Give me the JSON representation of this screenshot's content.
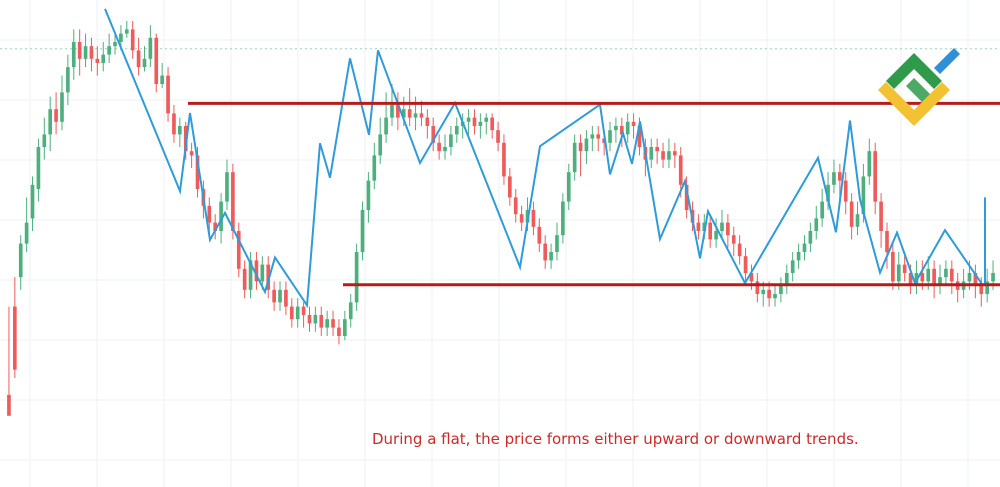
{
  "caption": "During a flat, the price forms either upward or downward trends.",
  "colors": {
    "up_candle": "#4caf7d",
    "down_candle": "#ef5a5a",
    "zigzag": "#2f9bd8",
    "range_lines": "#b71c1c",
    "grid": "#eef0f3",
    "dotted_level": "#9ad3bd",
    "caption": "#cc2a2a",
    "logo_green": "#2e9a4a",
    "logo_yellow": "#f2c232",
    "logo_blue": "#2f8fd8"
  },
  "logo": {
    "icon": "brand-logo-icon"
  },
  "chart_data": {
    "type": "candlestick",
    "ylim": [
      0,
      100
    ],
    "grid": true,
    "candles": [
      [
        6,
        1,
        27,
        6
      ],
      [
        27,
        12,
        34,
        10
      ],
      [
        34,
        42,
        44,
        31
      ],
      [
        42,
        47,
        53,
        40
      ],
      [
        48,
        56,
        58,
        45
      ],
      [
        55,
        65,
        67,
        52
      ],
      [
        65,
        68,
        72,
        62
      ],
      [
        68,
        74,
        77,
        64
      ],
      [
        74,
        71,
        78,
        68
      ],
      [
        71,
        78,
        82,
        69
      ],
      [
        78,
        84,
        87,
        75
      ],
      [
        84,
        90,
        93,
        81
      ],
      [
        90,
        86,
        93,
        82
      ],
      [
        86,
        89,
        92,
        84
      ],
      [
        89,
        86,
        91,
        83
      ],
      [
        86,
        85,
        89,
        82
      ],
      [
        85,
        87,
        90,
        83
      ],
      [
        87,
        89,
        92,
        85
      ],
      [
        89,
        90,
        92,
        87
      ],
      [
        90,
        92,
        94,
        88
      ],
      [
        92,
        93,
        95,
        91
      ],
      [
        93,
        88,
        95,
        86
      ],
      [
        88,
        84,
        91,
        82
      ],
      [
        84,
        86,
        89,
        83
      ],
      [
        86,
        91,
        94,
        84
      ],
      [
        91,
        80,
        92,
        78
      ],
      [
        80,
        82,
        85,
        79
      ],
      [
        82,
        73,
        84,
        71
      ],
      [
        73,
        68,
        75,
        66
      ],
      [
        68,
        70,
        72,
        65
      ],
      [
        70,
        64,
        71,
        62
      ],
      [
        64,
        63,
        66,
        60
      ],
      [
        63,
        55,
        65,
        53
      ],
      [
        55,
        51,
        57,
        48
      ],
      [
        51,
        47,
        53,
        44
      ],
      [
        47,
        45,
        49,
        43
      ],
      [
        45,
        52,
        54,
        42
      ],
      [
        52,
        59,
        62,
        50
      ],
      [
        59,
        45,
        61,
        43
      ],
      [
        45,
        36,
        47,
        34
      ],
      [
        36,
        31,
        38,
        29
      ],
      [
        31,
        38,
        40,
        29
      ],
      [
        38,
        33,
        40,
        31
      ],
      [
        33,
        37,
        39,
        31
      ],
      [
        37,
        31,
        39,
        29
      ],
      [
        31,
        28,
        33,
        26
      ],
      [
        28,
        31,
        33,
        26
      ],
      [
        31,
        27,
        33,
        25
      ],
      [
        27,
        24,
        29,
        22
      ],
      [
        24,
        27,
        29,
        22
      ],
      [
        27,
        25,
        28,
        22
      ],
      [
        25,
        23,
        27,
        21
      ],
      [
        23,
        25,
        27,
        21
      ],
      [
        25,
        22,
        27,
        20
      ],
      [
        22,
        24,
        26,
        20
      ],
      [
        24,
        22,
        26,
        20
      ],
      [
        22,
        20,
        24,
        18
      ],
      [
        20,
        24,
        26,
        19
      ],
      [
        24,
        28,
        30,
        22
      ],
      [
        28,
        40,
        42,
        26
      ],
      [
        40,
        50,
        52,
        38
      ],
      [
        50,
        57,
        59,
        47
      ],
      [
        57,
        63,
        66,
        55
      ],
      [
        63,
        68,
        72,
        61
      ],
      [
        68,
        72,
        78,
        66
      ],
      [
        72,
        75,
        80,
        70
      ],
      [
        75,
        72,
        78,
        69
      ],
      [
        72,
        74,
        77,
        70
      ],
      [
        74,
        72,
        79,
        70
      ],
      [
        72,
        73,
        77,
        69
      ],
      [
        73,
        72,
        76,
        70
      ],
      [
        72,
        70,
        74,
        67
      ],
      [
        70,
        66,
        72,
        64
      ],
      [
        66,
        64,
        68,
        62
      ],
      [
        64,
        65,
        68,
        62
      ],
      [
        65,
        68,
        70,
        63
      ],
      [
        68,
        70,
        72,
        66
      ],
      [
        70,
        71,
        73,
        67
      ],
      [
        71,
        72,
        74,
        68
      ],
      [
        72,
        70,
        74,
        68
      ],
      [
        70,
        71,
        73,
        67
      ],
      [
        71,
        72,
        73,
        68
      ],
      [
        72,
        69,
        73,
        67
      ],
      [
        69,
        66,
        71,
        64
      ],
      [
        66,
        58,
        68,
        56
      ],
      [
        58,
        53,
        60,
        51
      ],
      [
        53,
        49,
        55,
        47
      ],
      [
        49,
        47,
        51,
        45
      ],
      [
        47,
        50,
        53,
        45
      ],
      [
        50,
        46,
        52,
        44
      ],
      [
        46,
        42,
        48,
        40
      ],
      [
        42,
        38,
        44,
        36
      ],
      [
        38,
        40,
        42,
        36
      ],
      [
        40,
        44,
        47,
        38
      ],
      [
        44,
        52,
        54,
        42
      ],
      [
        52,
        59,
        61,
        50
      ],
      [
        59,
        66,
        68,
        57
      ],
      [
        66,
        64,
        68,
        58
      ],
      [
        64,
        67,
        69,
        61
      ],
      [
        67,
        68,
        70,
        64
      ],
      [
        68,
        67,
        70,
        64
      ],
      [
        67,
        66,
        69,
        63
      ],
      [
        66,
        69,
        71,
        64
      ],
      [
        69,
        70,
        72,
        66
      ],
      [
        70,
        68,
        72,
        65
      ],
      [
        68,
        71,
        73,
        66
      ],
      [
        71,
        70,
        73,
        67
      ],
      [
        70,
        65,
        72,
        63
      ],
      [
        65,
        62,
        67,
        58
      ],
      [
        62,
        65,
        67,
        60
      ],
      [
        65,
        64,
        67,
        61
      ],
      [
        64,
        62,
        66,
        60
      ],
      [
        62,
        64,
        67,
        60
      ],
      [
        64,
        63,
        66,
        60
      ],
      [
        63,
        56,
        65,
        53
      ],
      [
        56,
        50,
        58,
        48
      ],
      [
        50,
        47,
        52,
        45
      ],
      [
        47,
        45,
        49,
        43
      ],
      [
        45,
        47,
        49,
        43
      ],
      [
        47,
        43,
        49,
        41
      ],
      [
        43,
        45,
        48,
        41
      ],
      [
        45,
        47,
        50,
        43
      ],
      [
        47,
        44,
        49,
        41
      ],
      [
        44,
        42,
        46,
        39
      ],
      [
        42,
        39,
        44,
        37
      ],
      [
        39,
        35,
        41,
        33
      ],
      [
        35,
        33,
        37,
        31
      ],
      [
        33,
        30,
        35,
        28
      ],
      [
        30,
        31,
        33,
        27
      ],
      [
        31,
        29,
        33,
        27
      ],
      [
        29,
        30,
        32,
        27
      ],
      [
        30,
        32,
        34,
        28
      ],
      [
        32,
        35,
        37,
        30
      ],
      [
        35,
        38,
        40,
        33
      ],
      [
        38,
        40,
        42,
        36
      ],
      [
        40,
        42,
        44,
        38
      ],
      [
        42,
        45,
        47,
        40
      ],
      [
        45,
        48,
        51,
        43
      ],
      [
        48,
        52,
        55,
        46
      ],
      [
        52,
        56,
        59,
        50
      ],
      [
        56,
        59,
        62,
        54
      ],
      [
        59,
        57,
        61,
        52
      ],
      [
        57,
        52,
        59,
        49
      ],
      [
        52,
        46,
        54,
        43
      ],
      [
        46,
        49,
        52,
        44
      ],
      [
        49,
        58,
        61,
        47
      ],
      [
        58,
        64,
        67,
        56
      ],
      [
        64,
        52,
        66,
        49
      ],
      [
        52,
        45,
        54,
        41
      ],
      [
        45,
        40,
        47,
        36
      ],
      [
        40,
        33,
        42,
        31
      ],
      [
        33,
        37,
        40,
        31
      ],
      [
        37,
        35,
        40,
        33
      ],
      [
        35,
        32,
        37,
        30
      ],
      [
        32,
        35,
        38,
        30
      ],
      [
        35,
        33,
        38,
        31
      ],
      [
        33,
        36,
        39,
        31
      ],
      [
        36,
        32,
        38,
        29
      ],
      [
        32,
        34,
        37,
        30
      ],
      [
        34,
        36,
        38,
        32
      ],
      [
        36,
        33,
        38,
        30
      ],
      [
        33,
        31,
        35,
        28
      ],
      [
        31,
        33,
        36,
        29
      ],
      [
        33,
        35,
        38,
        31
      ],
      [
        35,
        32,
        37,
        29
      ],
      [
        32,
        30,
        34,
        27
      ],
      [
        30,
        33,
        36,
        28
      ],
      [
        33,
        35,
        38,
        31
      ]
    ],
    "zigzag": [
      [
        0.105,
        97.9
      ],
      [
        0.18,
        54.5
      ],
      [
        0.19,
        73.1
      ],
      [
        0.21,
        42.9
      ],
      [
        0.225,
        49.3
      ],
      [
        0.265,
        30.5
      ],
      [
        0.275,
        38.7
      ],
      [
        0.307,
        27.3
      ],
      [
        0.32,
        65.9
      ],
      [
        0.33,
        57.7
      ],
      [
        0.35,
        86.1
      ],
      [
        0.369,
        67.9
      ],
      [
        0.378,
        88.0
      ],
      [
        0.42,
        61.2
      ],
      [
        0.455,
        75.5
      ],
      [
        0.52,
        36.4
      ],
      [
        0.54,
        65.2
      ],
      [
        0.6,
        75.1
      ],
      [
        0.61,
        58.5
      ],
      [
        0.623,
        68.3
      ],
      [
        0.632,
        61.0
      ],
      [
        0.64,
        71.1
      ],
      [
        0.66,
        43.1
      ],
      [
        0.685,
        56.9
      ],
      [
        0.7,
        38.5
      ],
      [
        0.708,
        49.7
      ],
      [
        0.745,
        32.6
      ],
      [
        0.76,
        38.7
      ],
      [
        0.818,
        62.4
      ],
      [
        0.836,
        44.7
      ],
      [
        0.85,
        71.3
      ],
      [
        0.86,
        52.5
      ],
      [
        0.88,
        35.1
      ],
      [
        0.897,
        44.6
      ],
      [
        0.915,
        32.6
      ],
      [
        0.945,
        45.2
      ],
      [
        0.983,
        32.0
      ]
    ],
    "zigzag_tail": [
      [
        0.985,
        32.0
      ],
      [
        0.985,
        53.0
      ]
    ],
    "resistance": {
      "y": 75.4,
      "x_start": 0.188,
      "x_end": 1.0
    },
    "support": {
      "y": 32.2,
      "x_start": 0.343,
      "x_end": 1.0
    },
    "dotted_level": {
      "y": 88.4
    }
  }
}
